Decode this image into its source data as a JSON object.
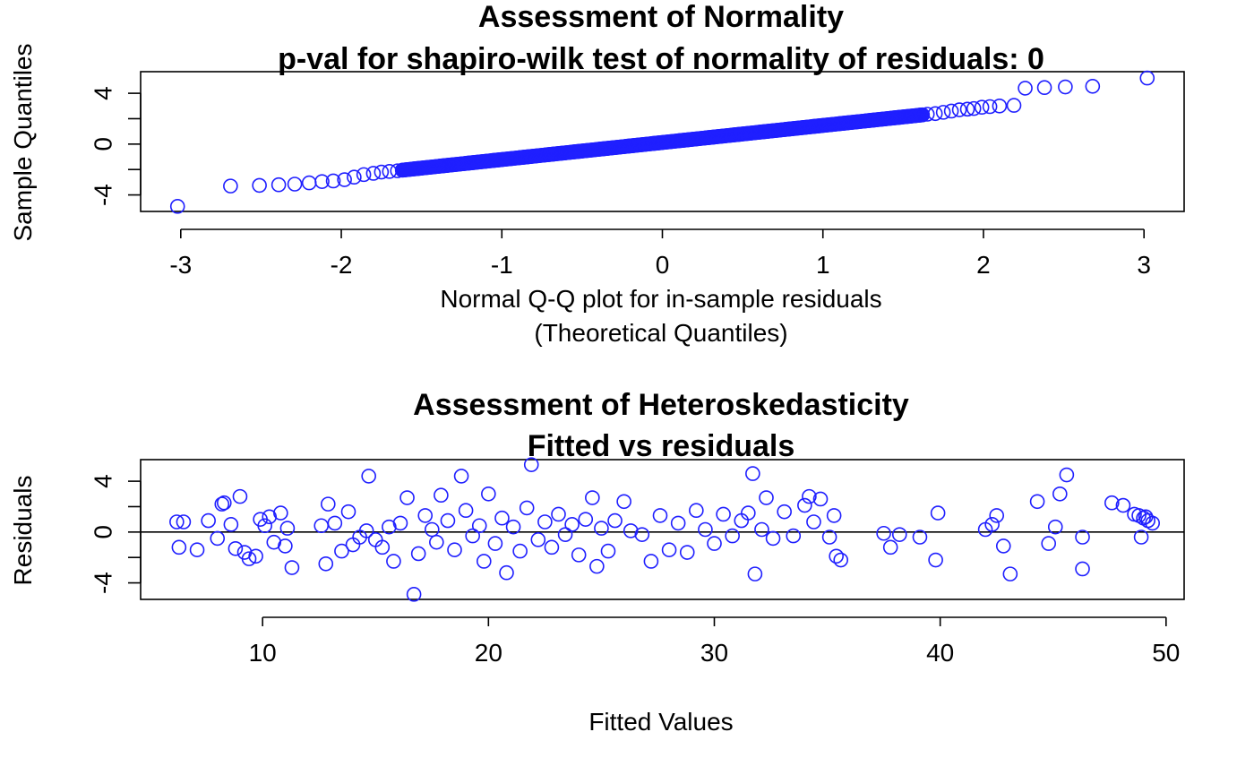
{
  "colors": {
    "points": "#1f1fff",
    "axes": "#000000"
  },
  "chart_data": [
    {
      "type": "scatter",
      "title_line1": "Assessment of Normality",
      "title_line2": "p-val for shapiro-wilk test of normality of residuals: 0",
      "xlabel_line1": "Normal Q-Q plot for in-sample residuals",
      "xlabel_line2": "(Theoretical Quantiles)",
      "ylabel": "Sample Quantiles",
      "xlim": [
        -3.25,
        3.25
      ],
      "ylim": [
        -5.3,
        5.7
      ],
      "x_ticks": [
        -3,
        -2,
        -1,
        0,
        1,
        2,
        3
      ],
      "y_ticks": [
        -4,
        0,
        4
      ],
      "x_tick_labels": [
        "-3",
        "-2",
        "-1",
        "0",
        "1",
        "2",
        "3"
      ],
      "y_tick_labels": [
        "-4",
        "0",
        "4"
      ],
      "y_minor_ticks": [
        -2,
        2
      ],
      "n_points": 506,
      "points": [
        [
          -3.02,
          -4.9
        ],
        [
          -2.69,
          -3.3
        ],
        [
          -2.51,
          -3.25
        ],
        [
          -2.39,
          -3.2
        ],
        [
          -2.29,
          -3.15
        ],
        [
          -2.2,
          -3.05
        ],
        [
          -2.12,
          -2.95
        ],
        [
          -2.05,
          -2.9
        ],
        [
          -1.98,
          -2.8
        ],
        [
          -1.92,
          -2.6
        ],
        [
          -1.86,
          -2.4
        ],
        [
          -1.8,
          -2.3
        ],
        [
          -1.75,
          -2.2
        ],
        [
          -1.7,
          -2.15
        ],
        [
          -1.65,
          -2.1
        ],
        [
          2.26,
          4.4
        ],
        [
          2.38,
          4.45
        ],
        [
          2.51,
          4.5
        ],
        [
          2.68,
          4.55
        ],
        [
          3.02,
          5.2
        ],
        [
          2.1,
          3.0
        ],
        [
          2.04,
          2.95
        ],
        [
          1.99,
          2.9
        ],
        [
          1.94,
          2.8
        ],
        [
          1.9,
          2.75
        ],
        [
          1.85,
          2.7
        ],
        [
          1.8,
          2.6
        ],
        [
          1.75,
          2.5
        ],
        [
          1.7,
          2.4
        ],
        [
          1.65,
          2.35
        ],
        [
          2.19,
          3.05
        ]
      ],
      "body_from": -1.62,
      "body_to": 1.62,
      "body_y_at_from": -2.05,
      "body_y_at_to": 2.3
    },
    {
      "type": "scatter",
      "title_line1": "Assessment of Heteroskedasticity",
      "title_line2": "Fitted vs residuals",
      "xlabel": "Fitted Values",
      "ylabel": "Residuals",
      "xlim": [
        4.6,
        50.8
      ],
      "ylim": [
        -5.3,
        5.7
      ],
      "x_ticks": [
        10,
        20,
        30,
        40,
        50
      ],
      "y_ticks": [
        -4,
        0,
        4
      ],
      "x_tick_labels": [
        "10",
        "20",
        "30",
        "40",
        "50"
      ],
      "y_tick_labels": [
        "-4",
        "0",
        "4"
      ],
      "y_minor_ticks": [
        -2,
        2
      ],
      "hline": 0,
      "points": [
        [
          6.2,
          0.8
        ],
        [
          6.5,
          0.8
        ],
        [
          6.3,
          -1.2
        ],
        [
          7.1,
          -1.4
        ],
        [
          7.6,
          0.9
        ],
        [
          8.2,
          2.2
        ],
        [
          8.3,
          2.3
        ],
        [
          8.0,
          -0.5
        ],
        [
          8.6,
          0.6
        ],
        [
          8.8,
          -1.3
        ],
        [
          9.0,
          2.8
        ],
        [
          9.2,
          -1.6
        ],
        [
          9.4,
          -2.1
        ],
        [
          9.7,
          -1.9
        ],
        [
          9.9,
          1.0
        ],
        [
          10.1,
          0.5
        ],
        [
          10.3,
          1.2
        ],
        [
          10.5,
          -0.8
        ],
        [
          10.8,
          1.5
        ],
        [
          11.1,
          0.3
        ],
        [
          11.3,
          -2.8
        ],
        [
          11.0,
          -1.1
        ],
        [
          12.6,
          0.5
        ],
        [
          12.8,
          -2.5
        ],
        [
          12.9,
          2.2
        ],
        [
          13.2,
          0.7
        ],
        [
          13.5,
          -1.5
        ],
        [
          13.8,
          1.6
        ],
        [
          14.0,
          -1.0
        ],
        [
          14.3,
          -0.4
        ],
        [
          14.6,
          0.1
        ],
        [
          14.7,
          4.4
        ],
        [
          15.0,
          -0.6
        ],
        [
          15.3,
          -1.2
        ],
        [
          15.6,
          0.4
        ],
        [
          15.8,
          -2.3
        ],
        [
          16.1,
          0.7
        ],
        [
          16.4,
          2.7
        ],
        [
          16.7,
          -4.9
        ],
        [
          16.9,
          -1.7
        ],
        [
          17.2,
          1.3
        ],
        [
          17.5,
          0.2
        ],
        [
          17.7,
          -0.8
        ],
        [
          17.9,
          2.9
        ],
        [
          18.2,
          0.9
        ],
        [
          18.5,
          -1.4
        ],
        [
          18.8,
          4.4
        ],
        [
          19.0,
          1.7
        ],
        [
          19.3,
          -0.3
        ],
        [
          19.6,
          0.5
        ],
        [
          19.8,
          -2.3
        ],
        [
          20.0,
          3.0
        ],
        [
          20.3,
          -0.9
        ],
        [
          20.6,
          1.1
        ],
        [
          20.8,
          -3.2
        ],
        [
          21.1,
          0.4
        ],
        [
          21.4,
          -1.5
        ],
        [
          21.7,
          1.9
        ],
        [
          21.9,
          5.3
        ],
        [
          22.2,
          -0.6
        ],
        [
          22.5,
          0.8
        ],
        [
          22.8,
          -1.2
        ],
        [
          23.1,
          1.4
        ],
        [
          23.4,
          -0.2
        ],
        [
          23.7,
          0.6
        ],
        [
          24.0,
          -1.8
        ],
        [
          24.3,
          1.0
        ],
        [
          24.6,
          2.7
        ],
        [
          24.8,
          -2.7
        ],
        [
          25.0,
          0.3
        ],
        [
          25.3,
          -1.5
        ],
        [
          25.6,
          0.9
        ],
        [
          26.0,
          2.4
        ],
        [
          26.3,
          0.1
        ],
        [
          26.8,
          -0.2
        ],
        [
          27.2,
          -2.3
        ],
        [
          27.6,
          1.3
        ],
        [
          28.0,
          -1.4
        ],
        [
          28.4,
          0.7
        ],
        [
          28.8,
          -1.6
        ],
        [
          29.2,
          1.7
        ],
        [
          29.6,
          0.2
        ],
        [
          30.0,
          -0.9
        ],
        [
          30.4,
          1.4
        ],
        [
          30.8,
          -0.3
        ],
        [
          31.2,
          0.9
        ],
        [
          31.5,
          1.5
        ],
        [
          31.7,
          4.6
        ],
        [
          31.8,
          -3.3
        ],
        [
          32.1,
          0.2
        ],
        [
          32.3,
          2.7
        ],
        [
          32.6,
          -0.5
        ],
        [
          33.1,
          1.6
        ],
        [
          33.5,
          -0.3
        ],
        [
          34.0,
          2.1
        ],
        [
          34.2,
          2.8
        ],
        [
          34.4,
          0.8
        ],
        [
          34.7,
          2.6
        ],
        [
          35.1,
          -0.4
        ],
        [
          35.3,
          1.3
        ],
        [
          35.4,
          -1.9
        ],
        [
          35.6,
          -2.2
        ],
        [
          37.5,
          -0.1
        ],
        [
          37.8,
          -1.2
        ],
        [
          38.2,
          -0.2
        ],
        [
          39.1,
          -0.4
        ],
        [
          39.8,
          -2.2
        ],
        [
          39.9,
          1.5
        ],
        [
          42.0,
          0.2
        ],
        [
          42.3,
          0.6
        ],
        [
          42.5,
          1.3
        ],
        [
          42.8,
          -1.1
        ],
        [
          43.1,
          -3.3
        ],
        [
          44.3,
          2.4
        ],
        [
          44.8,
          -0.9
        ],
        [
          45.1,
          0.4
        ],
        [
          45.3,
          3.0
        ],
        [
          45.6,
          4.5
        ],
        [
          46.3,
          -0.4
        ],
        [
          46.3,
          -2.9
        ],
        [
          47.6,
          2.3
        ],
        [
          48.1,
          2.1
        ],
        [
          48.6,
          1.4
        ],
        [
          48.8,
          1.3
        ],
        [
          49.0,
          1.1
        ],
        [
          49.2,
          0.9
        ],
        [
          49.4,
          0.7
        ],
        [
          48.9,
          -0.4
        ],
        [
          49.1,
          1.2
        ]
      ]
    }
  ]
}
